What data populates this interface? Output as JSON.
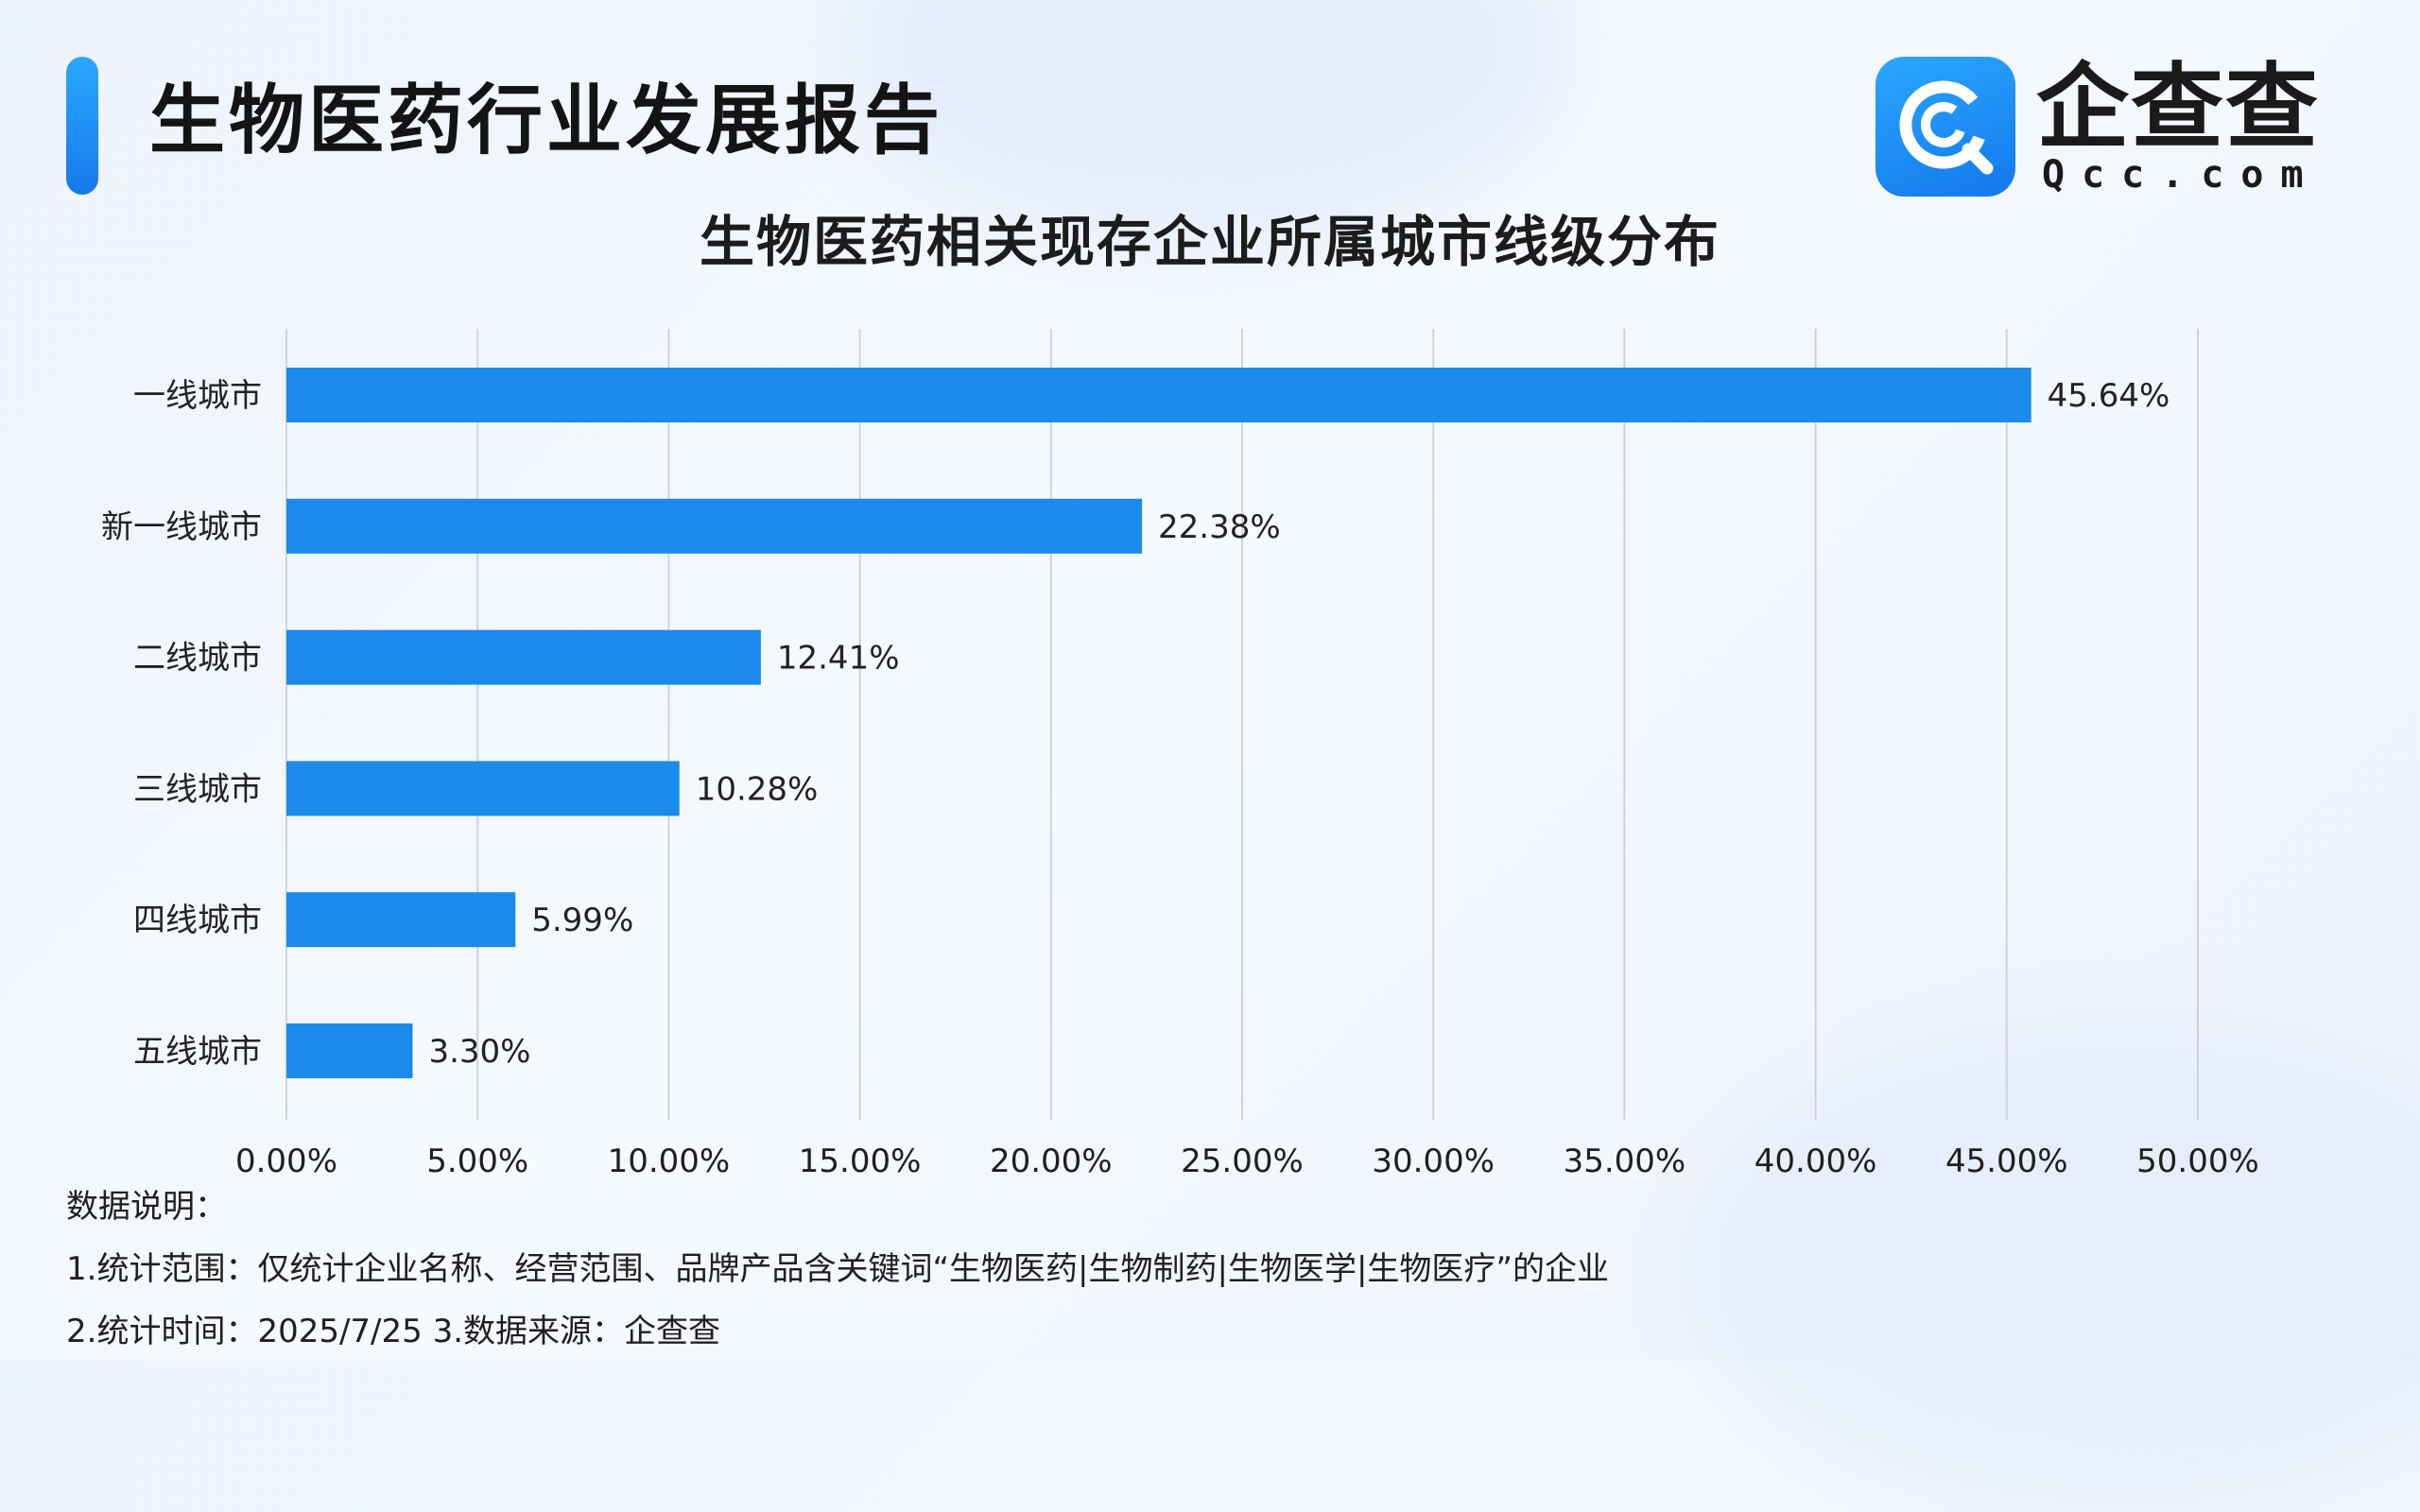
{
  "header": {
    "title": "生物医药行业发展报告"
  },
  "logo": {
    "name_cn": "企查查",
    "name_en": "Qcc.com"
  },
  "chart_data": {
    "type": "bar",
    "orientation": "horizontal",
    "title": "生物医药相关现存企业所属城市线级分布",
    "categories": [
      "一线城市",
      "新一线城市",
      "二线城市",
      "三线城市",
      "四线城市",
      "五线城市"
    ],
    "values": [
      45.64,
      22.38,
      12.41,
      10.28,
      5.99,
      3.3
    ],
    "value_labels": [
      "45.64%",
      "22.38%",
      "12.41%",
      "10.28%",
      "5.99%",
      "3.30%"
    ],
    "xlim": [
      0,
      50
    ],
    "xticks": [
      0,
      5,
      10,
      15,
      20,
      25,
      30,
      35,
      40,
      45,
      50
    ],
    "xtick_labels": [
      "0.00%",
      "5.00%",
      "10.00%",
      "15.00%",
      "20.00%",
      "25.00%",
      "30.00%",
      "35.00%",
      "40.00%",
      "45.00%",
      "50.00%"
    ],
    "grid": true,
    "bar_color": "#1a8bea"
  },
  "notes": {
    "heading": "数据说明：",
    "line1": "1.统计范围：仅统计企业名称、经营范围、品牌产品含关键词“生物医药|生物制药|生物医学|生物医疗”的企业",
    "line2": "2.统计时间：2025/7/25 3.数据来源：企查查"
  },
  "colors": {
    "accent": "#1a8bea",
    "title_text": "#141414",
    "grid": "#cfd3da"
  }
}
